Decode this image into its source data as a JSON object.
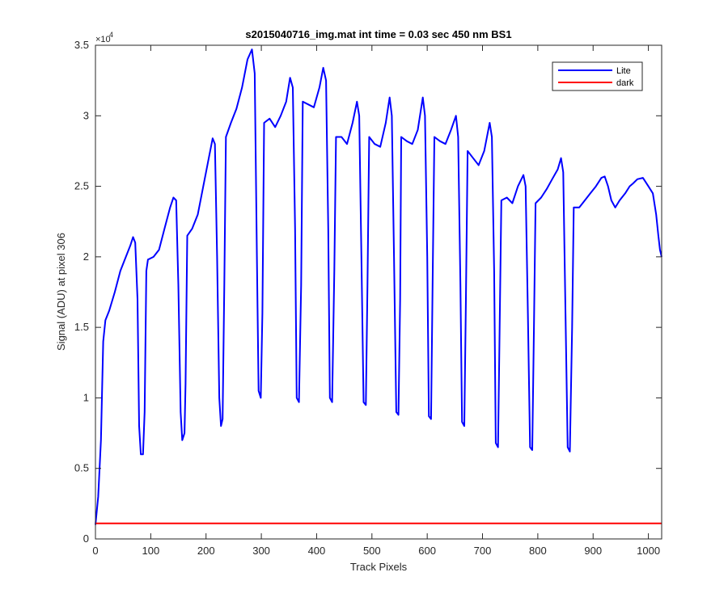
{
  "chart_data": {
    "type": "line",
    "title": "s2015040716_img.mat int time = 0.03 sec  450 nm BS1",
    "xlabel": "Track Pixels",
    "ylabel": "Signal (ADU) at pixel 306",
    "y_multiplier": "×10",
    "y_multiplier_exp": "4",
    "xlim": [
      0,
      1024
    ],
    "ylim": [
      0,
      3.5
    ],
    "xticks": [
      "0",
      "100",
      "200",
      "300",
      "400",
      "500",
      "600",
      "700",
      "800",
      "900",
      "1000"
    ],
    "yticks": [
      "0",
      "0.5",
      "1",
      "1.5",
      "2",
      "2.5",
      "3",
      "3.5"
    ],
    "grid": false,
    "legend_position": "top-right",
    "series": [
      {
        "name": "Lite",
        "color": "#0000ff",
        "points": [
          [
            0,
            0.1
          ],
          [
            5,
            0.3
          ],
          [
            10,
            0.7
          ],
          [
            14,
            1.4
          ],
          [
            18,
            1.55
          ],
          [
            25,
            1.62
          ],
          [
            35,
            1.75
          ],
          [
            45,
            1.9
          ],
          [
            55,
            2.0
          ],
          [
            63,
            2.08
          ],
          [
            68,
            2.14
          ],
          [
            72,
            2.1
          ],
          [
            76,
            1.7
          ],
          [
            79,
            0.8
          ],
          [
            82,
            0.6
          ],
          [
            86,
            0.6
          ],
          [
            89,
            0.9
          ],
          [
            92,
            1.9
          ],
          [
            95,
            1.98
          ],
          [
            105,
            2.0
          ],
          [
            115,
            2.05
          ],
          [
            125,
            2.2
          ],
          [
            135,
            2.35
          ],
          [
            141,
            2.42
          ],
          [
            146,
            2.4
          ],
          [
            150,
            1.8
          ],
          [
            154,
            0.9
          ],
          [
            157,
            0.7
          ],
          [
            161,
            0.75
          ],
          [
            163,
            1.1
          ],
          [
            166,
            2.15
          ],
          [
            175,
            2.2
          ],
          [
            185,
            2.3
          ],
          [
            195,
            2.5
          ],
          [
            205,
            2.7
          ],
          [
            212,
            2.84
          ],
          [
            216,
            2.8
          ],
          [
            220,
            2.0
          ],
          [
            224,
            1.0
          ],
          [
            227,
            0.8
          ],
          [
            230,
            0.85
          ],
          [
            233,
            1.8
          ],
          [
            236,
            2.85
          ],
          [
            245,
            2.95
          ],
          [
            255,
            3.05
          ],
          [
            265,
            3.2
          ],
          [
            275,
            3.4
          ],
          [
            283,
            3.47
          ],
          [
            288,
            3.3
          ],
          [
            292,
            2.0
          ],
          [
            295,
            1.05
          ],
          [
            299,
            1.0
          ],
          [
            302,
            1.6
          ],
          [
            305,
            2.95
          ],
          [
            315,
            2.98
          ],
          [
            325,
            2.92
          ],
          [
            335,
            3.0
          ],
          [
            345,
            3.1
          ],
          [
            352,
            3.27
          ],
          [
            357,
            3.2
          ],
          [
            361,
            2.2
          ],
          [
            364,
            1.0
          ],
          [
            368,
            0.97
          ],
          [
            372,
            1.8
          ],
          [
            375,
            3.1
          ],
          [
            385,
            3.08
          ],
          [
            395,
            3.06
          ],
          [
            405,
            3.2
          ],
          [
            412,
            3.34
          ],
          [
            417,
            3.25
          ],
          [
            421,
            2.2
          ],
          [
            424,
            1.0
          ],
          [
            428,
            0.97
          ],
          [
            432,
            1.9
          ],
          [
            435,
            2.85
          ],
          [
            445,
            2.85
          ],
          [
            455,
            2.8
          ],
          [
            465,
            2.95
          ],
          [
            473,
            3.1
          ],
          [
            477,
            3.0
          ],
          [
            481,
            2.0
          ],
          [
            485,
            0.97
          ],
          [
            489,
            0.95
          ],
          [
            492,
            1.8
          ],
          [
            495,
            2.85
          ],
          [
            505,
            2.8
          ],
          [
            515,
            2.78
          ],
          [
            525,
            2.95
          ],
          [
            532,
            3.13
          ],
          [
            536,
            3.0
          ],
          [
            540,
            2.0
          ],
          [
            544,
            0.9
          ],
          [
            548,
            0.88
          ],
          [
            551,
            1.7
          ],
          [
            553,
            2.85
          ],
          [
            563,
            2.82
          ],
          [
            573,
            2.8
          ],
          [
            583,
            2.9
          ],
          [
            592,
            3.13
          ],
          [
            596,
            3.0
          ],
          [
            600,
            2.0
          ],
          [
            603,
            0.87
          ],
          [
            607,
            0.85
          ],
          [
            610,
            1.9
          ],
          [
            613,
            2.85
          ],
          [
            623,
            2.82
          ],
          [
            633,
            2.8
          ],
          [
            643,
            2.9
          ],
          [
            652,
            3.0
          ],
          [
            656,
            2.85
          ],
          [
            660,
            1.8
          ],
          [
            663,
            0.83
          ],
          [
            667,
            0.8
          ],
          [
            670,
            1.7
          ],
          [
            673,
            2.75
          ],
          [
            683,
            2.7
          ],
          [
            693,
            2.65
          ],
          [
            703,
            2.75
          ],
          [
            713,
            2.95
          ],
          [
            717,
            2.85
          ],
          [
            721,
            1.9
          ],
          [
            724,
            0.68
          ],
          [
            728,
            0.65
          ],
          [
            731,
            1.5
          ],
          [
            734,
            2.4
          ],
          [
            744,
            2.42
          ],
          [
            754,
            2.38
          ],
          [
            764,
            2.5
          ],
          [
            774,
            2.58
          ],
          [
            778,
            2.5
          ],
          [
            782,
            1.6
          ],
          [
            786,
            0.65
          ],
          [
            790,
            0.63
          ],
          [
            793,
            1.5
          ],
          [
            796,
            2.38
          ],
          [
            806,
            2.42
          ],
          [
            816,
            2.48
          ],
          [
            826,
            2.55
          ],
          [
            836,
            2.62
          ],
          [
            842,
            2.7
          ],
          [
            846,
            2.6
          ],
          [
            850,
            1.6
          ],
          [
            854,
            0.65
          ],
          [
            858,
            0.62
          ],
          [
            862,
            1.5
          ],
          [
            865,
            2.35
          ],
          [
            875,
            2.35
          ],
          [
            885,
            2.4
          ],
          [
            895,
            2.45
          ],
          [
            905,
            2.5
          ],
          [
            915,
            2.56
          ],
          [
            921,
            2.57
          ],
          [
            927,
            2.5
          ],
          [
            933,
            2.4
          ],
          [
            940,
            2.35
          ],
          [
            948,
            2.4
          ],
          [
            958,
            2.45
          ],
          [
            966,
            2.5
          ],
          [
            972,
            2.52
          ],
          [
            980,
            2.55
          ],
          [
            990,
            2.56
          ],
          [
            1000,
            2.5
          ],
          [
            1008,
            2.45
          ],
          [
            1014,
            2.3
          ],
          [
            1018,
            2.15
          ],
          [
            1021,
            2.05
          ],
          [
            1024,
            2.0
          ]
        ]
      },
      {
        "name": "dark",
        "color": "#ff0000",
        "points": [
          [
            0,
            0.11
          ],
          [
            1024,
            0.11
          ]
        ]
      }
    ]
  }
}
